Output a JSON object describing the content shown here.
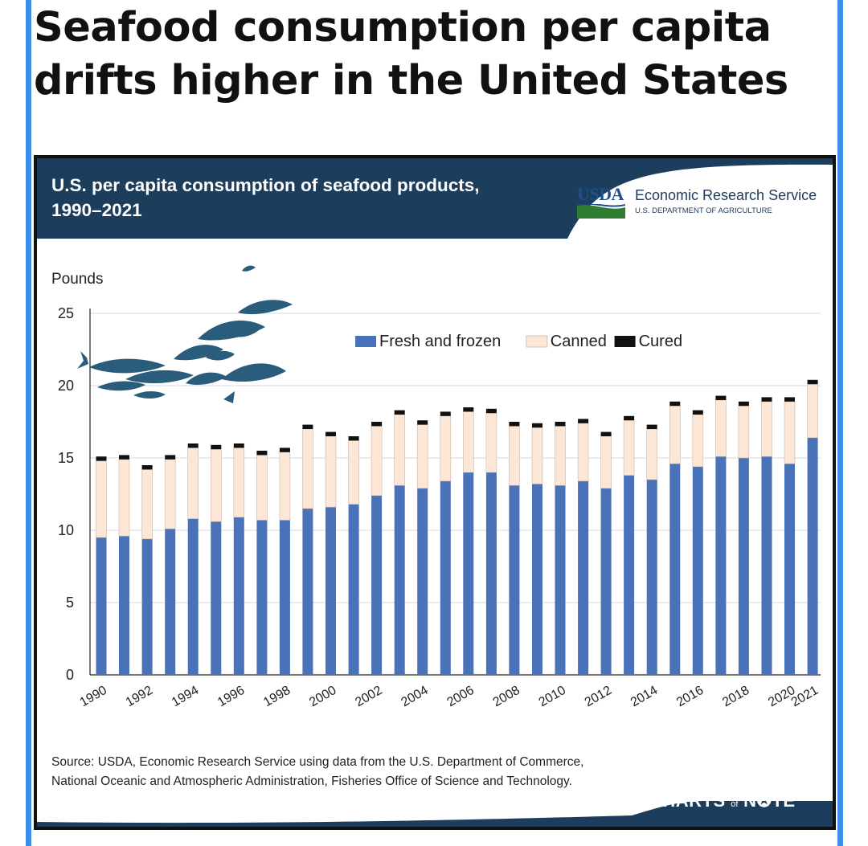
{
  "headline": "Seafood consumption per capita drifts higher in the United States",
  "card_title": "U.S. per capita consumption of seafood products, 1990–2021",
  "agency": {
    "logo_text": "USDA",
    "name": "Economic Research Service",
    "department": "U.S. DEPARTMENT OF AGRICULTURE"
  },
  "source": "Source: USDA, Economic Research Service using data from the U.S. Department of Commerce, National Oceanic and Atmospheric Administration, Fisheries Office of Science and Technology.",
  "brand": {
    "part1": "CHARTS",
    "part2": "of",
    "part3": "N",
    "part4": "TE"
  },
  "colors": {
    "header_dark": "#1d3d5c",
    "fresh": "#4a72b8",
    "canned": "#fce7d6",
    "cured": "#111111",
    "usda_green": "#2e7d32"
  },
  "chart_data": {
    "type": "bar",
    "stacked": true,
    "title": "U.S. per capita consumption of seafood products, 1990–2021",
    "ylabel": "Pounds",
    "xlabel": "",
    "ylim": [
      0,
      25
    ],
    "yticks": [
      0,
      5,
      10,
      15,
      20,
      25
    ],
    "grid": true,
    "legend_position": "top-center",
    "categories": [
      1990,
      1991,
      1992,
      1993,
      1994,
      1995,
      1996,
      1997,
      1998,
      1999,
      2000,
      2001,
      2002,
      2003,
      2004,
      2005,
      2006,
      2007,
      2008,
      2009,
      2010,
      2011,
      2012,
      2013,
      2014,
      2015,
      2016,
      2017,
      2018,
      2019,
      2020,
      2021
    ],
    "xtick_labels": [
      "1990",
      "1992",
      "1994",
      "1996",
      "1998",
      "2000",
      "2002",
      "2004",
      "2006",
      "2008",
      "2010",
      "2012",
      "2014",
      "2016",
      "2018",
      "2020",
      "2021"
    ],
    "series": [
      {
        "name": "Fresh and frozen",
        "color": "#4a72b8",
        "values": [
          9.5,
          9.6,
          9.4,
          10.1,
          10.8,
          10.6,
          10.9,
          10.7,
          10.7,
          11.5,
          11.6,
          11.8,
          12.4,
          13.1,
          12.9,
          13.4,
          14.0,
          14.0,
          13.1,
          13.2,
          13.1,
          13.4,
          12.9,
          13.8,
          13.5,
          14.6,
          14.4,
          15.1,
          15.0,
          15.1,
          14.6,
          16.4
        ]
      },
      {
        "name": "Canned",
        "color": "#fce7d6",
        "values": [
          5.3,
          5.3,
          4.8,
          4.8,
          4.9,
          5.0,
          4.8,
          4.5,
          4.7,
          5.5,
          4.9,
          4.4,
          4.8,
          4.9,
          4.4,
          4.5,
          4.2,
          4.1,
          4.1,
          3.9,
          4.1,
          4.0,
          3.6,
          3.8,
          3.5,
          4.0,
          3.6,
          3.9,
          3.6,
          3.8,
          4.3,
          3.7
        ]
      },
      {
        "name": "Cured",
        "color": "#111111",
        "values": [
          0.3,
          0.3,
          0.3,
          0.3,
          0.3,
          0.3,
          0.3,
          0.3,
          0.3,
          0.3,
          0.3,
          0.3,
          0.3,
          0.3,
          0.3,
          0.3,
          0.3,
          0.3,
          0.3,
          0.3,
          0.3,
          0.3,
          0.3,
          0.3,
          0.3,
          0.3,
          0.3,
          0.3,
          0.3,
          0.3,
          0.3,
          0.3
        ]
      }
    ]
  }
}
